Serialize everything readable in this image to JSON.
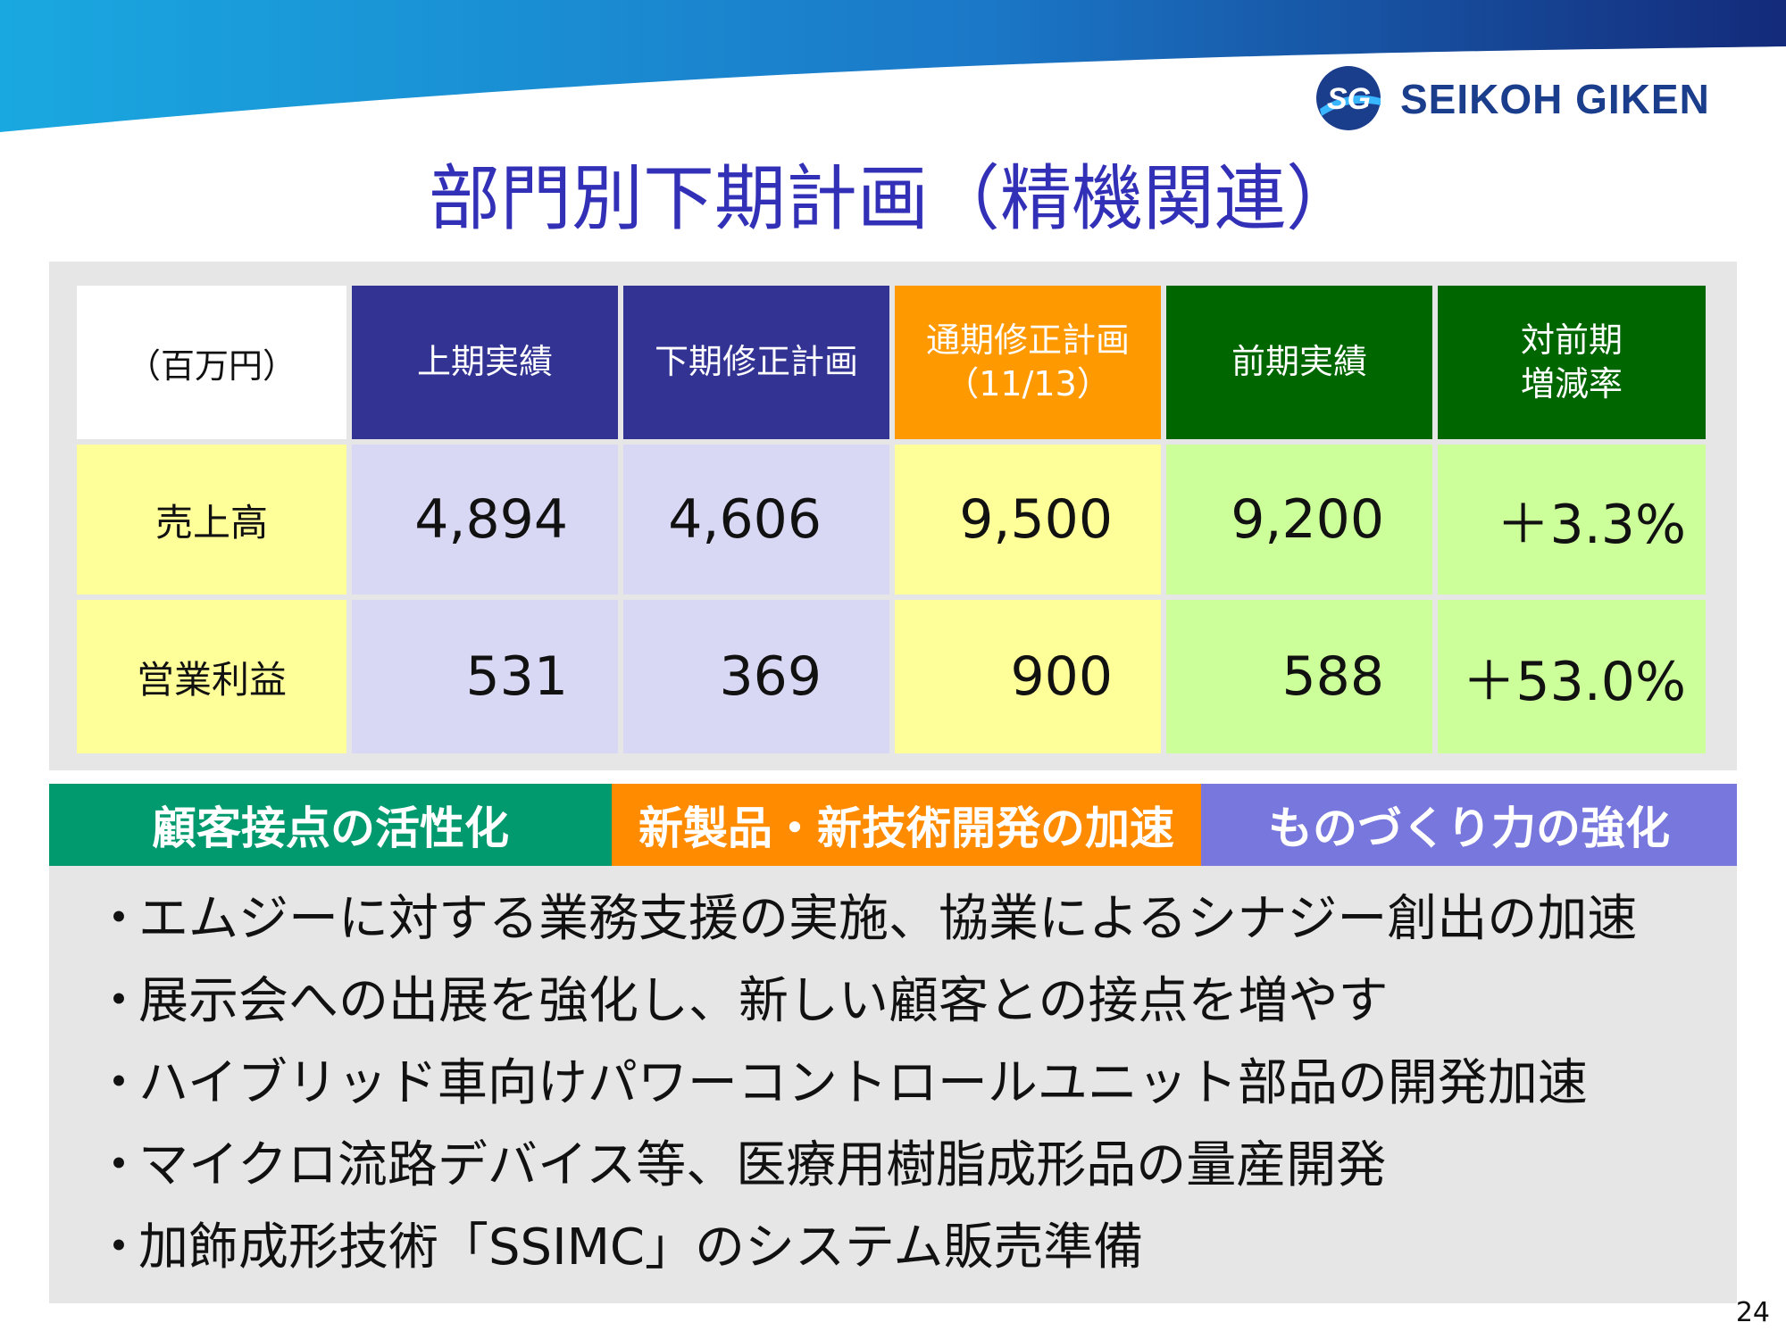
{
  "header": {
    "title": "部門別下期計画（精機関連）",
    "logo_text": "SEIKOH GIKEN",
    "logo_mark": "SG"
  },
  "table": {
    "unit": "（百万円）",
    "columns": [
      {
        "label_lines": [
          "上期実績"
        ]
      },
      {
        "label_lines": [
          "下期修正計画"
        ]
      },
      {
        "label_lines": [
          "通期修正計画",
          "（11/13）"
        ]
      },
      {
        "label_lines": [
          "前期実績"
        ]
      },
      {
        "label_lines": [
          "対前期",
          "増減率"
        ]
      }
    ],
    "rows": [
      {
        "label": "売上高",
        "values": [
          "4,894",
          "4,606",
          "9,500",
          "9,200",
          "＋3.3%"
        ]
      },
      {
        "label": "営業利益",
        "values": [
          "531",
          "369",
          "900",
          "588",
          "＋53.0%"
        ]
      }
    ]
  },
  "banners": [
    "顧客接点の活性化",
    "新製品・新技術開発の加速",
    "ものづくり力の強化"
  ],
  "bullets": {
    "marker": "・",
    "items": [
      "エムジーに対する業務支援の実施、協業によるシナジー創出の加速",
      "展示会への出展を強化し、新しい顧客との接点を増やす",
      "ハイブリッド車向けパワーコントロールユニット部品の開発加速",
      "マイクロ流路デバイス等、医療用樹脂成形品の量産開発",
      "加飾成形技術「SSIMC」のシステム販売準備"
    ]
  },
  "page_number": "24",
  "colors": {
    "title": "#3330b8",
    "header_blue": "#333394",
    "header_orange": "#ff9900",
    "header_green": "#006600",
    "banner_green": "#009a6e",
    "banner_orange": "#ff8c00",
    "banner_purple": "#7777dd"
  }
}
